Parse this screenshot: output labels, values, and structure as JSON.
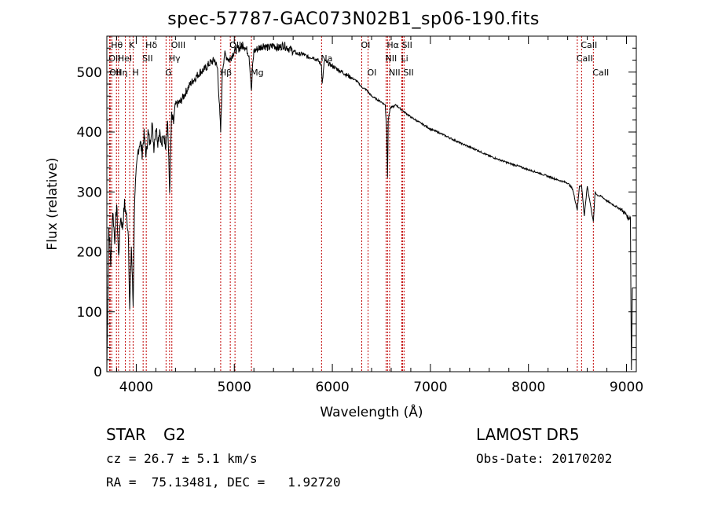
{
  "header": {
    "title": "spec-57787-GAC073N02B1_sp06-190.fits"
  },
  "info": {
    "object_type": "STAR",
    "subclass": "G2",
    "survey": "LAMOST DR5",
    "cz": "cz = 26.7 ± 5.1 km/s",
    "obs_date": "Obs-Date: 20170202",
    "radec": "RA =  75.13481, DEC =   1.92720"
  },
  "colors": {
    "line": "#000000",
    "marker": "#c00000",
    "axis": "#000000"
  },
  "chart_data": {
    "type": "line",
    "title": "spec-57787-GAC073N02B1_sp06-190.fits",
    "xlabel": "Wavelength (Å)",
    "ylabel": "Flux (relative)",
    "xlim": [
      3700,
      9100
    ],
    "ylim": [
      0,
      560
    ],
    "x_ticks": [
      4000,
      5000,
      6000,
      7000,
      8000,
      9000
    ],
    "y_ticks": [
      0,
      100,
      200,
      300,
      400,
      500
    ],
    "grid": false,
    "series": [
      {
        "x": [
          3700,
          3720,
          3740,
          3760,
          3780,
          3800,
          3820,
          3840,
          3860,
          3880,
          3900,
          3920,
          3933,
          3950,
          3968,
          3985,
          4000,
          4020,
          4040,
          4060,
          4080,
          4102,
          4120,
          4140,
          4160,
          4180,
          4200,
          4220,
          4240,
          4260,
          4280,
          4300,
          4320,
          4340,
          4360,
          4380,
          4400,
          4450,
          4500,
          4550,
          4600,
          4650,
          4700,
          4750,
          4800,
          4830,
          4861,
          4880,
          4900,
          4950,
          5000,
          5050,
          5100,
          5150,
          5167,
          5175,
          5183,
          5200,
          5250,
          5300,
          5350,
          5400,
          5450,
          5500,
          5550,
          5600,
          5650,
          5700,
          5750,
          5800,
          5850,
          5890,
          5896,
          5920,
          5950,
          6000,
          6050,
          6100,
          6150,
          6200,
          6250,
          6300,
          6350,
          6400,
          6450,
          6500,
          6540,
          6555,
          6563,
          6570,
          6590,
          6650,
          6700,
          6800,
          6900,
          7000,
          7100,
          7200,
          7300,
          7400,
          7500,
          7600,
          7700,
          7800,
          7900,
          8000,
          8100,
          8200,
          8300,
          8400,
          8450,
          8498,
          8520,
          8542,
          8570,
          8600,
          8662,
          8680,
          8700,
          8750,
          8800,
          8850,
          8900,
          8950,
          9000,
          9020,
          9040,
          9050,
          9060
        ],
        "values": [
          5,
          240,
          180,
          270,
          220,
          280,
          190,
          260,
          240,
          280,
          260,
          230,
          100,
          210,
          110,
          300,
          330,
          370,
          385,
          365,
          395,
          360,
          400,
          380,
          415,
          375,
          410,
          385,
          405,
          375,
          395,
          380,
          420,
          300,
          425,
          415,
          445,
          450,
          465,
          480,
          490,
          500,
          505,
          515,
          520,
          505,
          400,
          505,
          530,
          520,
          535,
          540,
          545,
          530,
          490,
          465,
          500,
          535,
          540,
          545,
          540,
          545,
          540,
          545,
          540,
          535,
          530,
          530,
          525,
          525,
          520,
          512,
          480,
          520,
          515,
          510,
          505,
          500,
          495,
          490,
          485,
          475,
          470,
          460,
          455,
          450,
          445,
          400,
          325,
          420,
          440,
          445,
          438,
          425,
          415,
          405,
          398,
          390,
          382,
          375,
          368,
          360,
          354,
          348,
          343,
          337,
          332,
          326,
          320,
          315,
          305,
          270,
          310,
          310,
          260,
          310,
          250,
          300,
          295,
          292,
          285,
          280,
          275,
          270,
          262,
          255,
          260,
          3,
          140
        ]
      }
    ],
    "line_markers": [
      {
        "wavelength": 3750,
        "label": "Hθ",
        "row": 1
      },
      {
        "wavelength": 3727,
        "label": "OII",
        "row": 2
      },
      {
        "wavelength": 3798,
        "label": "Hη",
        "row": 3
      },
      {
        "wavelength": 3734,
        "label": "OII",
        "row": 3
      },
      {
        "wavelength": 3819,
        "label": "HeI",
        "row": 2
      },
      {
        "wavelength": 3889,
        "label": "",
        "row": 0
      },
      {
        "wavelength": 3933,
        "label": "K",
        "row": 1
      },
      {
        "wavelength": 3968,
        "label": "H",
        "row": 3
      },
      {
        "wavelength": 4070,
        "label": "SII",
        "row": 2
      },
      {
        "wavelength": 4102,
        "label": "Hδ",
        "row": 1
      },
      {
        "wavelength": 4304,
        "label": "G",
        "row": 3
      },
      {
        "wavelength": 4340,
        "label": "Hγ",
        "row": 2
      },
      {
        "wavelength": 4363,
        "label": "OIII",
        "row": 1
      },
      {
        "wavelength": 4861,
        "label": "Hβ",
        "row": 3
      },
      {
        "wavelength": 4959,
        "label": "OIII",
        "row": 1
      },
      {
        "wavelength": 5007,
        "label": "",
        "row": 0
      },
      {
        "wavelength": 5175,
        "label": "Mg",
        "row": 3
      },
      {
        "wavelength": 5890,
        "label": "Na",
        "row": 2
      },
      {
        "wavelength": 6300,
        "label": "OI",
        "row": 1
      },
      {
        "wavelength": 6364,
        "label": "OI",
        "row": 3
      },
      {
        "wavelength": 6548,
        "label": "NII",
        "row": 2
      },
      {
        "wavelength": 6563,
        "label": "Hα",
        "row": 1
      },
      {
        "wavelength": 6584,
        "label": "NII",
        "row": 3
      },
      {
        "wavelength": 6708,
        "label": "Li",
        "row": 2
      },
      {
        "wavelength": 6716,
        "label": "SII",
        "row": 1
      },
      {
        "wavelength": 6731,
        "label": "SII",
        "row": 3
      },
      {
        "wavelength": 8498,
        "label": "CaII",
        "row": 2
      },
      {
        "wavelength": 8542,
        "label": "CaII",
        "row": 1
      },
      {
        "wavelength": 8662,
        "label": "CaII",
        "row": 3
      }
    ]
  }
}
